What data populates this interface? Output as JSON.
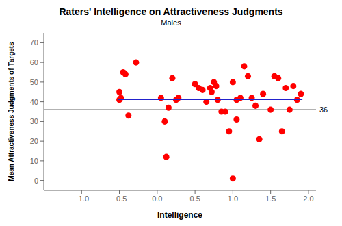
{
  "chart_data": {
    "type": "scatter",
    "title": "Raters' Intelligence on Attractiveness Judgments",
    "subtitle": "Males",
    "xlabel": "Intelligence",
    "ylabel": "Mean Attractiveness Judgments of Targets",
    "xlim": [
      -1.5,
      2.1
    ],
    "ylim": [
      -5,
      75
    ],
    "xticks": [
      {
        "value": -1.0,
        "label": "−1.0"
      },
      {
        "value": -0.5,
        "label": "−0.5"
      },
      {
        "value": 0.0,
        "label": "0.0"
      },
      0.5,
      {
        "value": 1.0,
        "label": "1.0"
      },
      1.5,
      {
        "value": 2.0,
        "label": "2.0"
      }
    ],
    "yticks": [
      0,
      10,
      20,
      30,
      40,
      50,
      60,
      70
    ],
    "grid": false,
    "series": [
      {
        "type": "scatter",
        "color": "#ff0000",
        "x": [
          -0.5,
          -0.5,
          -0.45,
          -0.42,
          -0.38,
          -0.48,
          -0.28,
          0.05,
          0.1,
          0.12,
          0.15,
          0.2,
          0.25,
          0.28,
          0.5,
          0.55,
          0.6,
          0.65,
          0.7,
          0.72,
          0.75,
          0.78,
          0.8,
          0.85,
          0.9,
          0.95,
          1.0,
          1.0,
          1.05,
          1.05,
          1.1,
          1.15,
          1.2,
          1.25,
          1.3,
          1.35,
          1.4,
          1.5,
          1.55,
          1.6,
          1.65,
          1.7,
          1.75,
          1.8,
          1.85,
          1.9
        ],
        "values": [
          41,
          45,
          55,
          54,
          33,
          42,
          60,
          42,
          30,
          12,
          37,
          52,
          41,
          42,
          49,
          47,
          46,
          40,
          47,
          45,
          50,
          48,
          41,
          35,
          35,
          25,
          1,
          50,
          41,
          31,
          42,
          58,
          53,
          42,
          38,
          21,
          44,
          36,
          53,
          52,
          25,
          47,
          36,
          48,
          41,
          44
        ]
      },
      {
        "type": "line",
        "color": "#2222cc",
        "x": [
          -0.52,
          1.92
        ],
        "values": [
          41.2,
          41.2
        ]
      }
    ],
    "reference_lines": [
      {
        "y": 36,
        "label": "36",
        "color": "#666666"
      }
    ]
  }
}
